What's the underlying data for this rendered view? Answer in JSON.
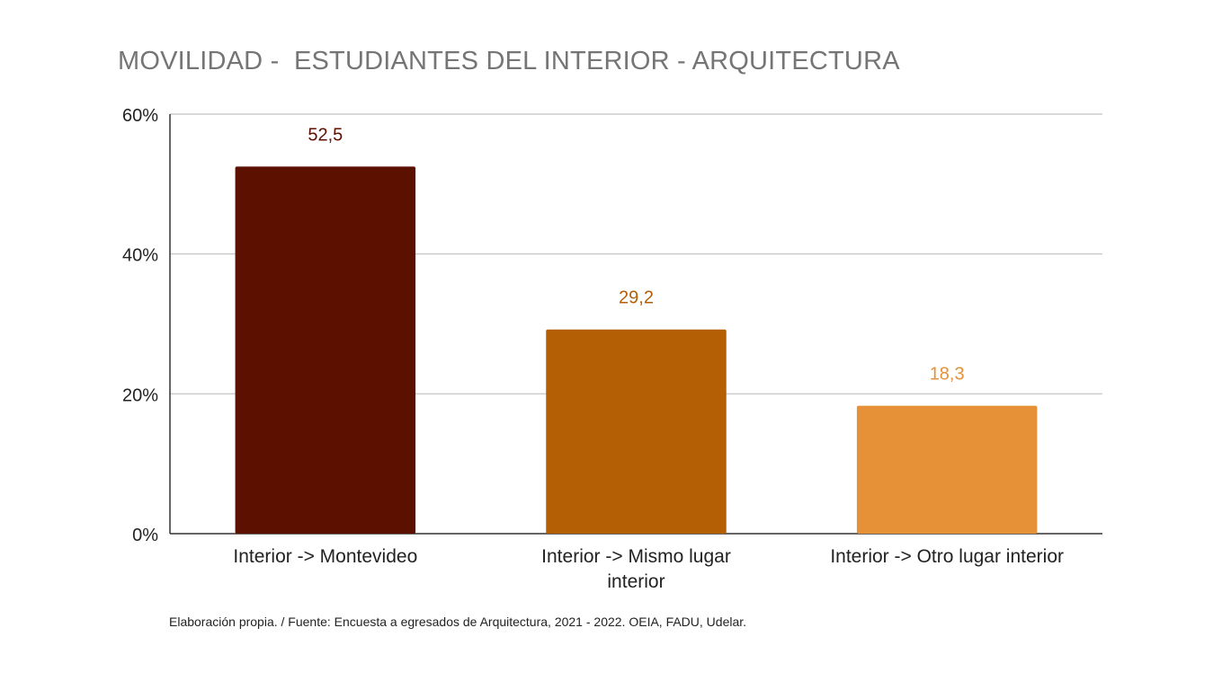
{
  "chart_data": {
    "type": "bar",
    "title": "MOVILIDAD -  ESTUDIANTES DEL INTERIOR - ARQUITECTURA",
    "categories": [
      "Interior -> Montevideo",
      "Interior -> Mismo lugar interior",
      "Interior -> Otro lugar interior"
    ],
    "category_lines": [
      [
        "Interior -> Montevideo"
      ],
      [
        "Interior -> Mismo lugar",
        "interior"
      ],
      [
        "Interior -> Otro lugar interior"
      ]
    ],
    "values": [
      52.5,
      29.2,
      18.3
    ],
    "value_labels": [
      "52,5",
      "29,2",
      "18,3"
    ],
    "colors": [
      "#5c1000",
      "#b45f06",
      "#e69138"
    ],
    "ylim": [
      0,
      60
    ],
    "yticks": [
      0,
      20,
      40,
      60
    ],
    "ytick_labels": [
      "0%",
      "20%",
      "40%",
      "60%"
    ],
    "xlabel": "",
    "ylabel": "",
    "grid": true,
    "legend": "none"
  },
  "source": "Elaboración propia. / Fuente: Encuesta a egresados de Arquitectura, 2021 - 2022. OEIA, FADU, Udelar."
}
